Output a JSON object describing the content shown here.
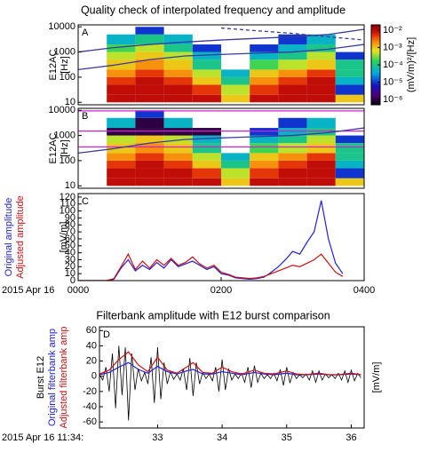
{
  "chart_data": [
    {
      "type": "heatmap",
      "title": "Quality check of interpolated frequency and amplitude",
      "panel": "A",
      "ylabel": [
        "E12AC",
        "[Hz]"
      ],
      "yscale": "log",
      "ylim": [
        8,
        12000
      ],
      "yticks": [
        10,
        100,
        1000,
        10000
      ],
      "xlim": [
        0,
        4
      ],
      "x_edges": [
        0,
        0.4,
        0.8,
        1.2,
        1.6,
        2.0,
        2.4,
        2.8,
        3.2,
        3.6,
        4.0
      ],
      "y_edges": [
        10,
        20,
        50,
        100,
        200,
        500,
        1000,
        2000,
        5000,
        10000
      ],
      "z": [
        [
          null,
          0.01,
          0.01,
          0.01,
          0.01,
          0.001,
          0.01,
          0.01,
          0.01,
          0.001
        ],
        [
          null,
          0.01,
          0.01,
          0.01,
          0.005,
          0.0005,
          0.005,
          0.01,
          0.01,
          1e-05
        ],
        [
          null,
          0.005,
          0.01,
          0.005,
          0.001,
          0.0001,
          0.002,
          0.005,
          0.01,
          5e-05
        ],
        [
          null,
          0.002,
          0.005,
          0.002,
          0.0005,
          5e-05,
          0.001,
          0.002,
          0.005,
          0.0001
        ],
        [
          null,
          0.001,
          0.002,
          0.001,
          0.0001,
          null,
          0.0002,
          0.0005,
          0.001,
          0.0001
        ],
        [
          null,
          0.0005,
          0.001,
          0.0005,
          5e-05,
          null,
          5e-05,
          0.0001,
          0.0005,
          1e-05
        ],
        [
          null,
          0.0002,
          0.0005,
          0.0001,
          1e-05,
          null,
          1e-05,
          5e-05,
          0.0001,
          null
        ],
        [
          null,
          5e-05,
          0.0001,
          5e-05,
          null,
          null,
          null,
          1e-05,
          5e-05,
          null
        ],
        [
          null,
          null,
          1e-05,
          null,
          null,
          null,
          null,
          null,
          null,
          null
        ]
      ],
      "colorbar": {
        "label": "(mV/m)²/[Hz]",
        "scale": "log",
        "lim": [
          5e-07,
          0.02
        ],
        "ticks": [
          {
            "value": 0.01,
            "label": "10⁻²"
          },
          {
            "value": 0.001,
            "label": "10⁻³"
          },
          {
            "value": 0.0001,
            "label": "10⁻⁴"
          },
          {
            "value": 1e-05,
            "label": "10⁻⁵"
          },
          {
            "value": 1e-06,
            "label": "10⁻⁶"
          }
        ]
      },
      "lines": [
        {
          "color": "#3a3aa0",
          "style": "solid",
          "x": [
            0,
            0.5,
            1,
            1.5,
            2,
            2.5,
            3,
            3.5,
            4
          ],
          "values": [
            1000,
            1500,
            2000,
            2500,
            3000,
            3500,
            4000,
            5000,
            8000
          ]
        },
        {
          "color": "#3a3aa0",
          "style": "solid",
          "x": [
            0,
            0.5,
            1,
            1.5,
            2,
            2.5,
            3,
            3.5,
            4
          ],
          "values": [
            200,
            300,
            500,
            700,
            800,
            900,
            1000,
            1300,
            2000
          ]
        },
        {
          "color": "#3a3aa0",
          "style": "dashed",
          "x": [
            2,
            2.5,
            3,
            3.5,
            4
          ],
          "values": [
            9000,
            7000,
            5500,
            4000,
            3000
          ]
        }
      ]
    },
    {
      "type": "heatmap",
      "panel": "B",
      "ylabel": [
        "E12AC",
        "[Hz]"
      ],
      "yscale": "log",
      "ylim": [
        8,
        12000
      ],
      "yticks": [
        10,
        100,
        1000,
        10000
      ],
      "xlim": [
        0,
        4
      ],
      "x_edges": [
        0,
        0.4,
        0.8,
        1.2,
        1.6,
        2.0,
        2.4,
        2.8,
        3.2,
        3.6,
        4.0
      ],
      "y_edges": [
        10,
        20,
        50,
        100,
        200,
        500,
        1000,
        2000,
        5000,
        10000
      ],
      "z": [
        [
          null,
          0.01,
          0.01,
          0.01,
          0.01,
          0.001,
          0.01,
          0.01,
          0.01,
          0.001
        ],
        [
          null,
          0.01,
          0.01,
          0.01,
          0.005,
          0.0005,
          0.005,
          0.01,
          0.01,
          1e-05
        ],
        [
          null,
          0.005,
          0.01,
          0.005,
          0.001,
          0.0001,
          0.002,
          0.005,
          0.01,
          5e-05
        ],
        [
          null,
          0.002,
          0.005,
          0.002,
          0.0005,
          5e-05,
          0.001,
          0.002,
          0.005,
          0.0001
        ],
        [
          null,
          0.001,
          0.002,
          0.001,
          0.0001,
          null,
          0.0002,
          0.0005,
          0.001,
          0.0001
        ],
        [
          null,
          0.0005,
          0.001,
          0.0005,
          5e-05,
          null,
          5e-05,
          0.0001,
          0.0005,
          1e-05
        ],
        [
          null,
          1e-06,
          1e-06,
          1e-06,
          1e-06,
          null,
          1e-05,
          5e-05,
          0.0001,
          null
        ],
        [
          null,
          5e-05,
          1e-06,
          5e-05,
          null,
          null,
          null,
          1e-05,
          5e-05,
          null
        ],
        [
          null,
          null,
          1e-05,
          null,
          null,
          null,
          null,
          null,
          null,
          null
        ]
      ],
      "colorbar": {
        "scale": "log",
        "lim": [
          5e-07,
          0.02
        ]
      },
      "lines": [
        {
          "color": "#d020d0",
          "style": "solid",
          "x": [
            0,
            4
          ],
          "values": [
            1500,
            1500
          ]
        },
        {
          "color": "#d020d0",
          "style": "solid",
          "x": [
            0,
            4
          ],
          "values": [
            350,
            350
          ]
        },
        {
          "color": "#d020d0",
          "style": "solid",
          "x": [
            0,
            4
          ],
          "values": [
            9500,
            9500
          ]
        },
        {
          "color": "#3a3aa0",
          "style": "solid",
          "x": [
            0,
            0.5,
            1,
            1.5,
            2,
            2.5,
            3,
            3.5,
            4
          ],
          "values": [
            200,
            300,
            500,
            700,
            800,
            900,
            1000,
            1300,
            2000
          ]
        }
      ]
    },
    {
      "type": "line",
      "panel": "C",
      "ylabel": "[mV/m]",
      "date_label": "2015 Apr 16",
      "xlim": [
        0,
        4
      ],
      "xticks": [
        {
          "value": 0,
          "label": "0000"
        },
        {
          "value": 2,
          "label": "0200"
        },
        {
          "value": 4,
          "label": "0400"
        }
      ],
      "ylim": [
        0,
        125
      ],
      "yticks": [
        0,
        10,
        20,
        30,
        40,
        50,
        60,
        70,
        80,
        90,
        100,
        110,
        120
      ],
      "x": [
        0,
        0.1,
        0.2,
        0.3,
        0.4,
        0.5,
        0.6,
        0.7,
        0.8,
        0.9,
        1.0,
        1.1,
        1.2,
        1.3,
        1.4,
        1.5,
        1.6,
        1.7,
        1.8,
        1.9,
        2.0,
        2.1,
        2.2,
        2.3,
        2.4,
        2.5,
        2.6,
        2.7,
        2.8,
        2.9,
        3.0,
        3.1,
        3.2,
        3.3,
        3.4,
        3.5,
        3.6,
        3.7,
        3.8,
        3.9,
        4.0
      ],
      "series": [
        {
          "name": "Original amplitude",
          "color": "#2020e0",
          "values": [
            0,
            0,
            0,
            0,
            0,
            2,
            18,
            30,
            14,
            22,
            16,
            26,
            18,
            30,
            20,
            24,
            28,
            22,
            16,
            20,
            10,
            8,
            4,
            3,
            2,
            3,
            5,
            12,
            20,
            30,
            42,
            38,
            55,
            70,
            115,
            60,
            25,
            10,
            null,
            null,
            null
          ]
        },
        {
          "name": "Adjusted amplitude",
          "color": "#d01010",
          "values": [
            0,
            0,
            0,
            0,
            0,
            3,
            20,
            38,
            16,
            28,
            18,
            30,
            22,
            32,
            22,
            26,
            34,
            24,
            18,
            22,
            12,
            9,
            5,
            4,
            3,
            4,
            6,
            10,
            14,
            18,
            22,
            20,
            25,
            30,
            38,
            25,
            12,
            6,
            null,
            null,
            null
          ]
        }
      ]
    },
    {
      "type": "line",
      "title": "Filterbank amplitude with E12 burst comparison",
      "panel": "D",
      "ylabel": "[mV/m]",
      "date_label": "2015 Apr 16 11:34:",
      "xlim": [
        32.1,
        36.2
      ],
      "xticks": [
        33,
        34,
        35,
        36
      ],
      "ylim": [
        -68,
        65
      ],
      "yticks": [
        -60,
        -40,
        -20,
        0,
        20,
        40,
        60
      ],
      "series": [
        {
          "name": "Burst E12",
          "color": "#000000",
          "x": [
            32.1,
            32.15,
            32.2,
            32.25,
            32.3,
            32.35,
            32.4,
            32.45,
            32.5,
            32.55,
            32.6,
            32.65,
            32.7,
            32.75,
            32.8,
            32.85,
            32.9,
            32.95,
            33.0,
            33.05,
            33.1,
            33.15,
            33.2,
            33.25,
            33.3,
            33.35,
            33.4,
            33.45,
            33.5,
            33.55,
            33.6,
            33.65,
            33.7,
            33.75,
            33.8,
            33.85,
            33.9,
            33.95,
            34.0,
            34.05,
            34.1,
            34.15,
            34.2,
            34.25,
            34.3,
            34.35,
            34.4,
            34.45,
            34.5,
            34.55,
            34.6,
            34.65,
            34.7,
            34.75,
            34.8,
            34.85,
            34.9,
            34.95,
            35.0,
            35.05,
            35.1,
            35.15,
            35.2,
            35.25,
            35.3,
            35.35,
            35.4,
            35.45,
            35.5,
            35.55,
            35.6,
            35.65,
            35.7,
            35.75,
            35.8,
            35.85,
            35.9,
            35.95,
            36.0,
            36.05,
            36.1,
            36.15
          ],
          "values": [
            2,
            -5,
            12,
            -20,
            30,
            -42,
            40,
            -25,
            38,
            -58,
            30,
            -18,
            10,
            -6,
            5,
            -10,
            25,
            -35,
            38,
            -30,
            18,
            -10,
            6,
            -4,
            3,
            -5,
            10,
            -18,
            24,
            -26,
            18,
            -10,
            5,
            -3,
            3,
            -6,
            12,
            -20,
            22,
            -18,
            10,
            -5,
            3,
            -3,
            4,
            -8,
            12,
            -15,
            14,
            -8,
            4,
            -3,
            2,
            -3,
            4,
            -6,
            9,
            -12,
            12,
            -9,
            5,
            -3,
            2,
            -2,
            3,
            -5,
            7,
            -8,
            7,
            -5,
            3,
            -2,
            2,
            -3,
            4,
            -5,
            7,
            -8,
            8,
            -6,
            4,
            -2
          ]
        },
        {
          "name": "Original filterbank amp",
          "color": "#2020e0",
          "x": [
            32.1,
            32.25,
            32.4,
            32.55,
            32.7,
            32.85,
            33.0,
            33.15,
            33.3,
            33.45,
            33.55,
            33.7,
            33.85,
            34.0,
            34.15,
            34.3,
            34.5,
            34.65,
            34.8,
            35.0,
            35.15,
            35.3,
            35.5,
            35.65,
            35.8,
            36.0,
            36.15
          ],
          "values": [
            2,
            5,
            12,
            18,
            9,
            4,
            13,
            6,
            3,
            7,
            9,
            3,
            3,
            6,
            4,
            2,
            5,
            3,
            2,
            4,
            2,
            2,
            3,
            2,
            2,
            3,
            2
          ]
        },
        {
          "name": "Adjusted filterbank amp",
          "color": "#d01010",
          "x": [
            32.1,
            32.25,
            32.4,
            32.55,
            32.7,
            32.85,
            33.0,
            33.15,
            33.3,
            33.45,
            33.55,
            33.7,
            33.85,
            34.0,
            34.15,
            34.3,
            34.5,
            34.65,
            34.8,
            35.0,
            35.15,
            35.3,
            35.5,
            35.65,
            35.8,
            36.0,
            36.15
          ],
          "values": [
            3,
            8,
            22,
            32,
            15,
            6,
            25,
            8,
            4,
            12,
            18,
            5,
            4,
            12,
            6,
            3,
            8,
            4,
            3,
            7,
            3,
            2,
            4,
            2,
            2,
            4,
            2
          ]
        }
      ]
    }
  ]
}
